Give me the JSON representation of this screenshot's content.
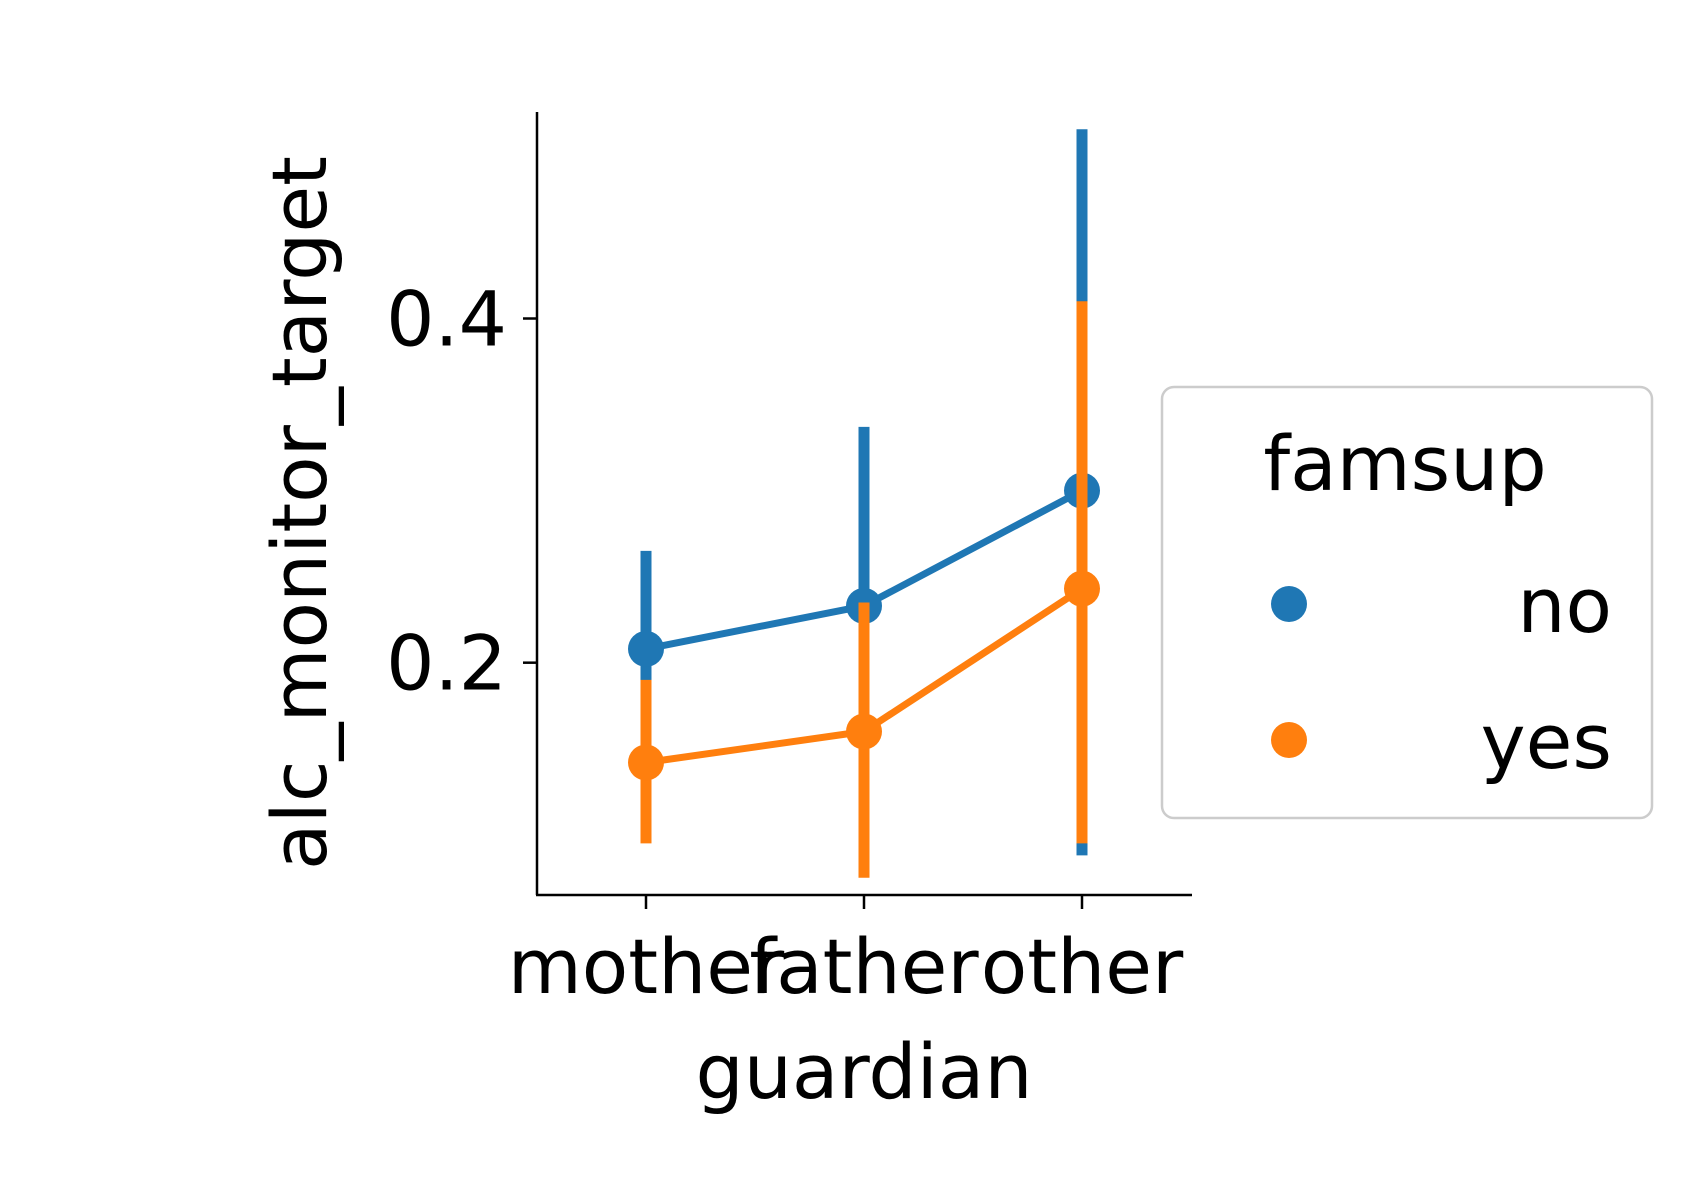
{
  "chart_data": {
    "type": "line",
    "xlabel": "guardian",
    "ylabel": "alc_monitor_target",
    "categories": [
      "mother",
      "father",
      "other"
    ],
    "ylim": [
      0.065,
      0.52
    ],
    "yticks": [
      0.2,
      0.4
    ],
    "ytick_labels": [
      "0.2",
      "0.4"
    ],
    "grid": false,
    "legend": {
      "title": "famsup",
      "placement": "right"
    },
    "series": [
      {
        "name": "no",
        "color": "#1f77b4",
        "values": [
          0.208,
          0.233,
          0.3
        ],
        "ci_low": [
          0.18,
          0.11,
          0.088
        ],
        "ci_high": [
          0.265,
          0.337,
          0.51
        ]
      },
      {
        "name": "yes",
        "color": "#ff7f0e",
        "values": [
          0.142,
          0.16,
          0.243
        ],
        "ci_low": [
          0.095,
          0.075,
          0.095
        ],
        "ci_high": [
          0.19,
          0.235,
          0.41
        ]
      }
    ]
  }
}
